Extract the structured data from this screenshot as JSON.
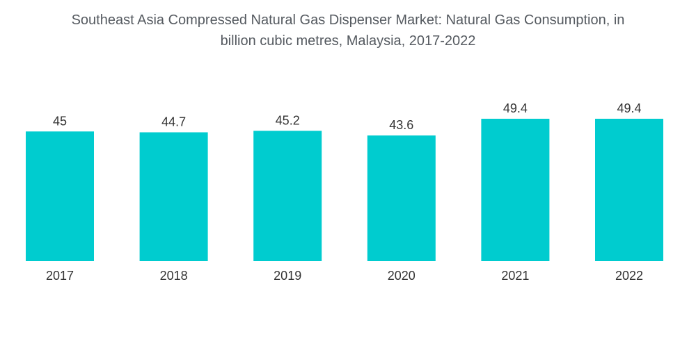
{
  "chart_data": {
    "type": "bar",
    "title_line1": "Southeast Asia Compressed Natural Gas Dispenser Market: Natural Gas Consumption, in",
    "title_line2": "billion cubic metres, Malaysia, 2017-2022",
    "categories": [
      "2017",
      "2018",
      "2019",
      "2020",
      "2021",
      "2022"
    ],
    "values": [
      45,
      44.7,
      45.2,
      43.6,
      49.4,
      49.4
    ],
    "value_labels": [
      "45",
      "44.7",
      "45.2",
      "43.6",
      "49.4",
      "49.4"
    ],
    "xlabel": "",
    "ylabel": "",
    "ylim": [
      0,
      49.4
    ],
    "grid": false,
    "legend": "none",
    "bar_color": "#00cccf"
  }
}
